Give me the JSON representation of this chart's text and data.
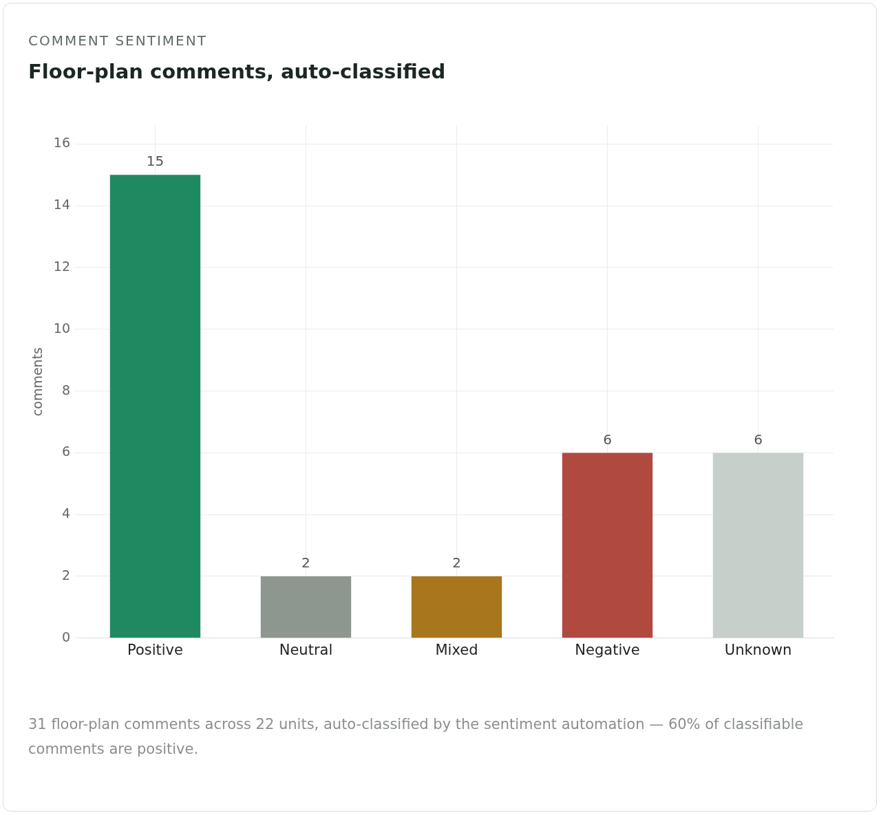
{
  "chart_data": {
    "type": "bar",
    "subtitle": "COMMENT SENTIMENT",
    "title": "Floor-plan comments, auto-classified",
    "ylabel": "comments",
    "categories": [
      "Positive",
      "Neutral",
      "Mixed",
      "Negative",
      "Unknown"
    ],
    "values": [
      15,
      2,
      2,
      6,
      6
    ],
    "colors": [
      "#1f8a62",
      "#8e9690",
      "#a8761c",
      "#b04a3e",
      "#c7cfca"
    ],
    "ylim": [
      0,
      16.6
    ],
    "yticks": [
      0,
      2,
      4,
      6,
      8,
      10,
      12,
      14,
      16
    ],
    "grid": true,
    "data_labels": true,
    "legend": false,
    "annotations": [
      "31 floor-plan comments across 22 units, auto-classified by the sentiment automation — 60% of classifiable comments are positive."
    ]
  }
}
